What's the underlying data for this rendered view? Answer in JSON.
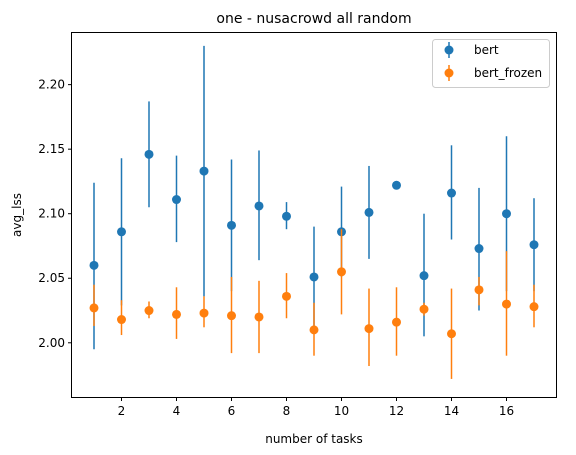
{
  "chart_data": {
    "type": "scatter",
    "title": "one - nusacrowd all random",
    "xlabel": "number of tasks",
    "ylabel": "avg_lss",
    "xlim": [
      0.2,
      17.8
    ],
    "ylim": [
      1.958,
      2.24
    ],
    "xticks": [
      2,
      4,
      6,
      8,
      10,
      12,
      14,
      16
    ],
    "xtick_labels": [
      "2",
      "4",
      "6",
      "8",
      "10",
      "12",
      "14",
      "16"
    ],
    "yticks": [
      2.0,
      2.05,
      2.1,
      2.15,
      2.2
    ],
    "ytick_labels": [
      "2.00",
      "2.05",
      "2.10",
      "2.15",
      "2.20"
    ],
    "grid": false,
    "legend_position": "top-right",
    "error_bars": true,
    "x": [
      1,
      2,
      3,
      4,
      5,
      6,
      7,
      8,
      9,
      10,
      11,
      12,
      13,
      14,
      15,
      16,
      17
    ],
    "series": [
      {
        "name": "bert",
        "color": "#1f77b4",
        "values": [
          2.06,
          2.086,
          2.146,
          2.111,
          2.133,
          2.091,
          2.106,
          2.098,
          2.051,
          2.086,
          2.101,
          2.122,
          2.052,
          2.116,
          2.073,
          2.1,
          2.076
        ],
        "err_low": [
          1.995,
          2.029,
          2.105,
          2.078,
          2.036,
          2.04,
          2.064,
          2.088,
          2.013,
          2.051,
          2.065,
          2.121,
          2.005,
          2.08,
          2.025,
          2.04,
          2.04
        ],
        "err_high": [
          2.124,
          2.143,
          2.187,
          2.145,
          2.23,
          2.142,
          2.149,
          2.109,
          2.09,
          2.121,
          2.137,
          2.124,
          2.1,
          2.153,
          2.12,
          2.16,
          2.112
        ]
      },
      {
        "name": "bert_frozen",
        "color": "#ff7f0e",
        "values": [
          2.027,
          2.018,
          2.025,
          2.022,
          2.023,
          2.021,
          2.02,
          2.036,
          2.01,
          2.055,
          2.011,
          2.016,
          2.026,
          2.007,
          2.041,
          2.03,
          2.028
        ],
        "err_low": [
          2.013,
          2.006,
          2.019,
          2.003,
          2.012,
          1.992,
          1.992,
          2.019,
          1.99,
          2.022,
          1.982,
          1.99,
          2.021,
          1.972,
          2.029,
          1.99,
          2.012
        ],
        "err_high": [
          2.045,
          2.033,
          2.032,
          2.043,
          2.036,
          2.051,
          2.048,
          2.054,
          2.031,
          2.088,
          2.042,
          2.043,
          2.031,
          2.042,
          2.051,
          2.071,
          2.045
        ]
      }
    ]
  }
}
